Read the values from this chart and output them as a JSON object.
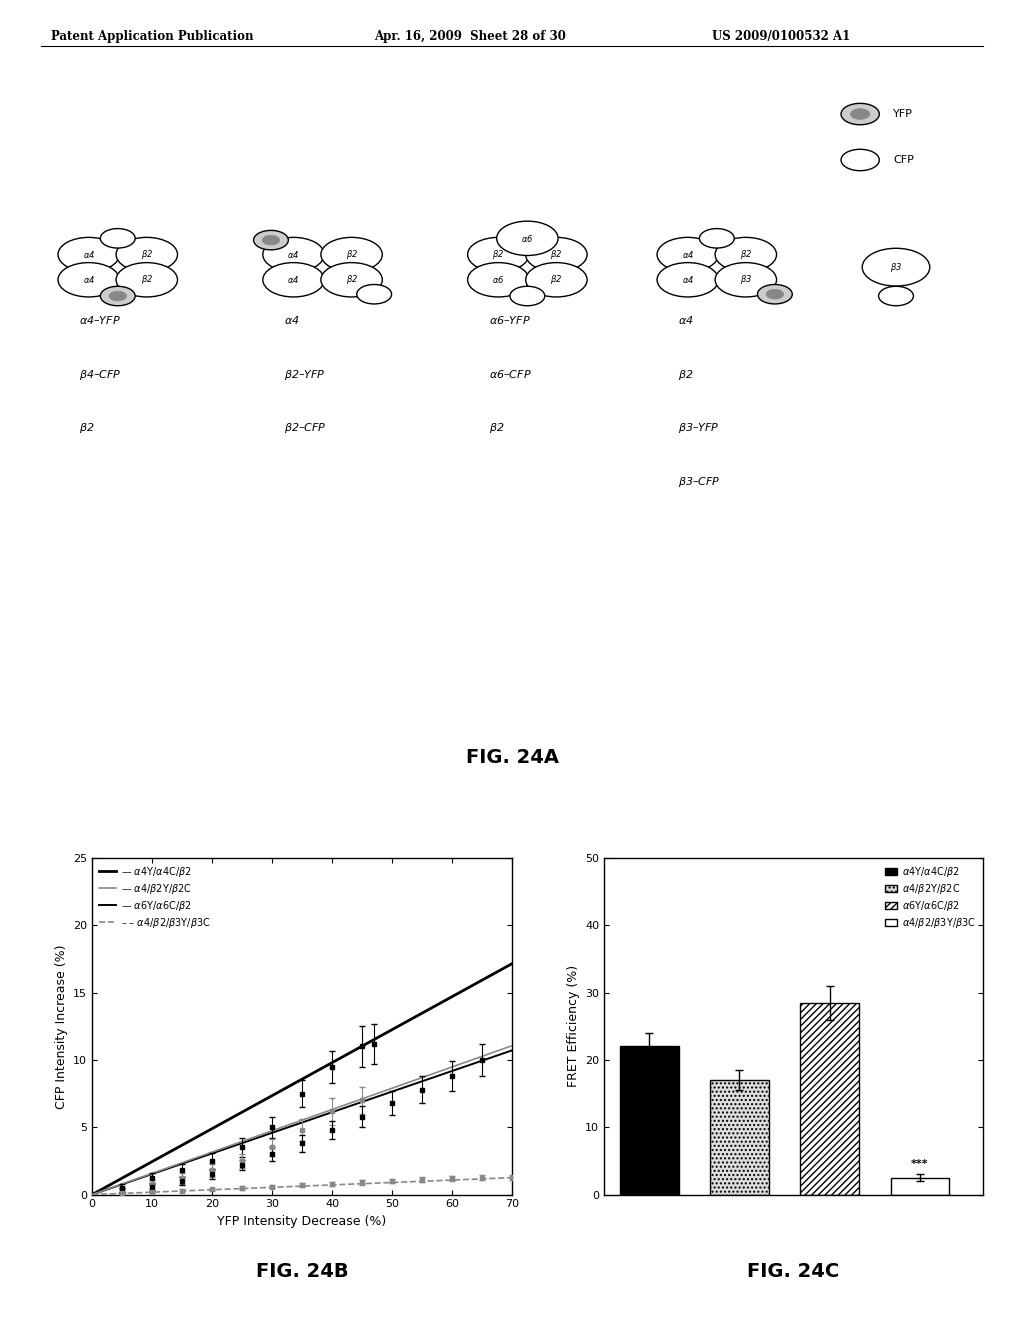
{
  "header_left": "Patent Application Publication",
  "header_mid": "Apr. 16, 2009  Sheet 28 of 30",
  "header_right": "US 2009/0100532 A1",
  "fig24a_label": "FIG. 24A",
  "fig24b_label": "FIG. 24B",
  "fig24c_label": "FIG. 24C",
  "fig24b_xlabel": "YFP Intensity Decrease (%)",
  "fig24b_ylabel": "CFP Intensity Increase (%)",
  "fig24b_xlim": [
    0,
    70
  ],
  "fig24b_ylim": [
    0,
    25
  ],
  "fig24b_xticks": [
    0,
    10,
    20,
    30,
    40,
    50,
    60,
    70
  ],
  "fig24b_yticks": [
    0,
    5,
    10,
    15,
    20,
    25
  ],
  "scatter1_x": [
    5,
    10,
    15,
    20,
    25,
    30,
    35,
    40,
    45,
    47
  ],
  "scatter1_y": [
    0.5,
    1.2,
    1.8,
    2.5,
    3.5,
    5.0,
    7.5,
    9.5,
    11.0,
    11.2
  ],
  "scatter1_err": [
    0.3,
    0.4,
    0.5,
    0.6,
    0.7,
    0.8,
    1.0,
    1.2,
    1.5,
    1.5
  ],
  "scatter2_x": [
    5,
    10,
    15,
    20,
    25,
    30,
    35,
    40,
    45
  ],
  "scatter2_y": [
    0.3,
    0.8,
    1.2,
    1.8,
    2.5,
    3.5,
    4.8,
    6.2,
    7.0
  ],
  "scatter2_err": [
    0.2,
    0.3,
    0.4,
    0.5,
    0.5,
    0.6,
    0.8,
    1.0,
    1.0
  ],
  "scatter3_x": [
    5,
    10,
    15,
    20,
    25,
    30,
    35,
    40,
    45,
    50,
    55,
    60,
    65
  ],
  "scatter3_y": [
    0.3,
    0.6,
    1.0,
    1.5,
    2.2,
    3.0,
    3.8,
    4.8,
    5.8,
    6.8,
    7.8,
    8.8,
    10.0
  ],
  "scatter3_err": [
    0.2,
    0.25,
    0.3,
    0.35,
    0.4,
    0.5,
    0.6,
    0.7,
    0.8,
    0.9,
    1.0,
    1.1,
    1.2
  ],
  "scatter4_x": [
    5,
    10,
    15,
    20,
    25,
    30,
    35,
    40,
    45,
    50,
    55,
    60,
    65,
    70
  ],
  "scatter4_y": [
    0.1,
    0.2,
    0.3,
    0.4,
    0.5,
    0.6,
    0.7,
    0.8,
    0.9,
    1.0,
    1.1,
    1.2,
    1.25,
    1.3
  ],
  "scatter4_err": [
    0.05,
    0.08,
    0.1,
    0.12,
    0.13,
    0.14,
    0.15,
    0.16,
    0.17,
    0.17,
    0.18,
    0.18,
    0.18,
    0.18
  ],
  "fit1_slope": 0.245,
  "fit2_slope": 0.158,
  "fit3_slope": 0.153,
  "fit4_slope": 0.018,
  "fig24c_ylabel": "FRET Efficiency (%)",
  "fig24c_ylim": [
    0,
    50
  ],
  "fig24c_yticks": [
    0,
    10,
    20,
    30,
    40,
    50
  ],
  "bar_values": [
    22.0,
    17.0,
    28.5,
    2.5
  ],
  "bar_errors": [
    2.0,
    1.5,
    2.5,
    0.5
  ],
  "background_color": "#ffffff"
}
